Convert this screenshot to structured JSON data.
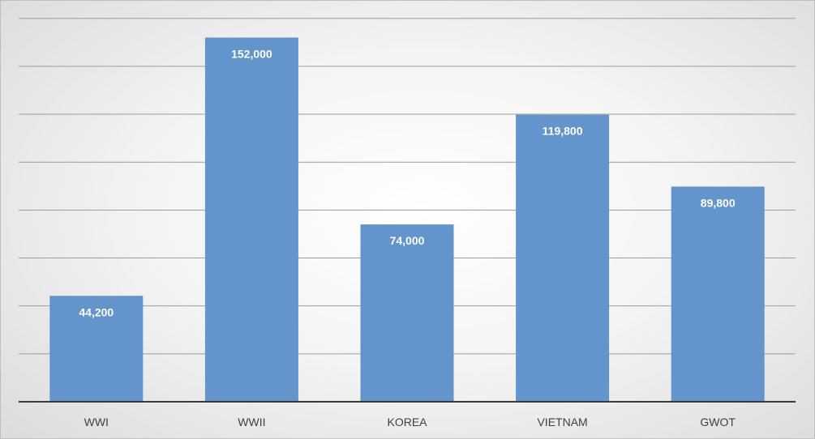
{
  "chart_data": {
    "type": "bar",
    "categories": [
      "WWI",
      "WWII",
      "KOREA",
      "VIETNAM",
      "GWOT"
    ],
    "values": [
      44200,
      152000,
      74000,
      119800,
      89800
    ],
    "value_labels": [
      "44,200",
      "152,000",
      "74,000",
      "119,800",
      "89,800"
    ],
    "title": "",
    "xlabel": "",
    "ylabel": "",
    "ylim": [
      0,
      160000
    ],
    "grid": true,
    "legend": "none",
    "colors": {
      "bar": "#6394cc",
      "gridline": "#9c9c9c",
      "axis": "#3a3a3a",
      "data_label": "#ffffff",
      "tick_label": "#3f3f3f"
    }
  }
}
